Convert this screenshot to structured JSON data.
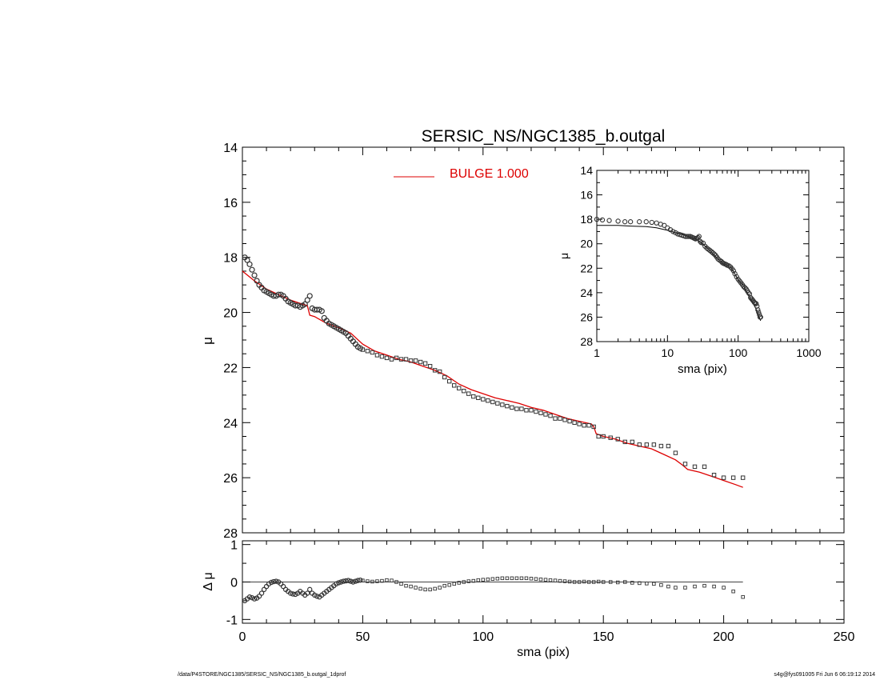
{
  "title": "SERSIC_NS/NGC1385_b.outgal",
  "footer": {
    "left": "/data/P4STORE/NGC1385/SERSIC_NS/NGC1385_b.outgal_1dprof",
    "right": "s4g@fys091005  Fri Jun  6 06:19:12 2014"
  },
  "colors": {
    "model": "#dd0000",
    "data": "#333333",
    "axis": "#000000"
  },
  "chart_data": [
    {
      "id": "main",
      "type": "scatter",
      "xlabel": "",
      "ylabel": "μ",
      "xlim": [
        0,
        250
      ],
      "ylim": [
        28,
        14
      ],
      "yticks": [
        14,
        16,
        18,
        20,
        22,
        24,
        26,
        28
      ],
      "legend": {
        "position": "top-center",
        "label": "BULGE  1.000"
      },
      "series": [
        {
          "kind": "data-points",
          "x": [
            1,
            2,
            3,
            4,
            5,
            6,
            7,
            8,
            9,
            10,
            11,
            12,
            13,
            14,
            15,
            16,
            17,
            18,
            19,
            20,
            21,
            22,
            23,
            24,
            25,
            26,
            27,
            28,
            29,
            30,
            31,
            32,
            33,
            34,
            35,
            36,
            37,
            38,
            39,
            40,
            41,
            42,
            43,
            44,
            45,
            46,
            47,
            48,
            49,
            50,
            52,
            54,
            56,
            58,
            60,
            62,
            64,
            66,
            68,
            70,
            72,
            74,
            76,
            78,
            80,
            82,
            84,
            86,
            88,
            90,
            92,
            94,
            96,
            98,
            100,
            102,
            104,
            106,
            108,
            110,
            112,
            114,
            116,
            118,
            120,
            122,
            124,
            126,
            128,
            130,
            132,
            134,
            136,
            138,
            140,
            142,
            144,
            146,
            148,
            150,
            153,
            156,
            159,
            162,
            165,
            168,
            171,
            174,
            177,
            180,
            184,
            188,
            192,
            196,
            200,
            204,
            208
          ],
          "y": [
            18.0,
            18.1,
            18.25,
            18.45,
            18.65,
            18.85,
            19.0,
            19.1,
            19.2,
            19.25,
            19.3,
            19.35,
            19.4,
            19.4,
            19.35,
            19.35,
            19.4,
            19.5,
            19.6,
            19.65,
            19.7,
            19.75,
            19.75,
            19.8,
            19.75,
            19.7,
            19.55,
            19.4,
            19.85,
            19.9,
            19.9,
            19.9,
            19.95,
            20.2,
            20.3,
            20.4,
            20.45,
            20.5,
            20.55,
            20.6,
            20.65,
            20.7,
            20.75,
            20.85,
            20.95,
            21.05,
            21.15,
            21.25,
            21.3,
            21.35,
            21.4,
            21.45,
            21.55,
            21.6,
            21.65,
            21.7,
            21.65,
            21.7,
            21.7,
            21.75,
            21.75,
            21.8,
            21.85,
            21.95,
            22.1,
            22.15,
            22.35,
            22.5,
            22.65,
            22.75,
            22.85,
            22.95,
            23.05,
            23.1,
            23.15,
            23.2,
            23.25,
            23.3,
            23.35,
            23.4,
            23.45,
            23.5,
            23.5,
            23.55,
            23.55,
            23.6,
            23.65,
            23.7,
            23.75,
            23.85,
            23.85,
            23.9,
            23.95,
            24.0,
            24.05,
            24.1,
            24.1,
            24.15,
            24.5,
            24.5,
            24.55,
            24.6,
            24.7,
            24.7,
            24.8,
            24.8,
            24.8,
            24.85,
            24.85,
            25.1,
            25.5,
            25.6,
            25.6,
            25.9,
            26.0,
            26.0,
            26.0
          ]
        },
        {
          "kind": "model",
          "name": "BULGE  1.000",
          "x": [
            0,
            5,
            10,
            15,
            20,
            25,
            27,
            28,
            30,
            35,
            40,
            45,
            50,
            55,
            60,
            65,
            70,
            75,
            80,
            85,
            90,
            95,
            100,
            105,
            110,
            115,
            120,
            125,
            130,
            135,
            140,
            145,
            146,
            147,
            150,
            155,
            160,
            165,
            170,
            175,
            180,
            183,
            185,
            190,
            195,
            200,
            205,
            208
          ],
          "y": [
            18.5,
            18.85,
            19.15,
            19.35,
            19.55,
            19.7,
            19.75,
            20.1,
            20.15,
            20.4,
            20.55,
            20.75,
            21.15,
            21.4,
            21.55,
            21.7,
            21.8,
            21.95,
            22.1,
            22.3,
            22.6,
            22.8,
            22.95,
            23.1,
            23.2,
            23.3,
            23.45,
            23.55,
            23.7,
            23.85,
            23.95,
            24.05,
            24.15,
            24.4,
            24.5,
            24.6,
            24.75,
            24.85,
            24.95,
            25.15,
            25.35,
            25.55,
            25.7,
            25.8,
            25.95,
            26.1,
            26.25,
            26.35
          ]
        }
      ]
    },
    {
      "id": "residual",
      "type": "scatter",
      "xlabel": "sma (pix)",
      "ylabel": "Δ μ",
      "xlim": [
        0,
        250
      ],
      "ylim": [
        -1.1,
        1.1
      ],
      "xticks": [
        0,
        50,
        100,
        150,
        200,
        250
      ],
      "yticks": [
        -1,
        0,
        1
      ],
      "reference_line": 0,
      "series": [
        {
          "kind": "residuals",
          "x": [
            1,
            2,
            3,
            4,
            5,
            6,
            7,
            8,
            9,
            10,
            11,
            12,
            13,
            14,
            15,
            16,
            17,
            18,
            19,
            20,
            21,
            22,
            23,
            24,
            25,
            26,
            27,
            28,
            29,
            30,
            31,
            32,
            33,
            34,
            35,
            36,
            37,
            38,
            39,
            40,
            41,
            42,
            43,
            44,
            45,
            46,
            47,
            48,
            49,
            50,
            52,
            54,
            56,
            58,
            60,
            62,
            64,
            66,
            68,
            70,
            72,
            74,
            76,
            78,
            80,
            82,
            84,
            86,
            88,
            90,
            92,
            94,
            96,
            98,
            100,
            102,
            104,
            106,
            108,
            110,
            112,
            114,
            116,
            118,
            120,
            122,
            124,
            126,
            128,
            130,
            132,
            134,
            136,
            138,
            140,
            142,
            144,
            146,
            148,
            150,
            153,
            156,
            159,
            162,
            165,
            168,
            171,
            174,
            177,
            180,
            184,
            188,
            192,
            196,
            200,
            204,
            208
          ],
          "y": [
            -0.5,
            -0.45,
            -0.4,
            -0.42,
            -0.45,
            -0.43,
            -0.38,
            -0.3,
            -0.2,
            -0.12,
            -0.05,
            -0.01,
            0.01,
            0.02,
            0.0,
            -0.05,
            -0.12,
            -0.2,
            -0.25,
            -0.3,
            -0.32,
            -0.33,
            -0.3,
            -0.25,
            -0.3,
            -0.35,
            -0.3,
            -0.2,
            -0.3,
            -0.35,
            -0.38,
            -0.4,
            -0.35,
            -0.3,
            -0.25,
            -0.2,
            -0.15,
            -0.1,
            -0.05,
            -0.02,
            0.0,
            0.02,
            0.03,
            0.04,
            0.02,
            0.0,
            0.02,
            0.04,
            0.05,
            0.04,
            0.02,
            0.01,
            0.02,
            0.03,
            0.05,
            0.04,
            0.0,
            -0.05,
            -0.1,
            -0.12,
            -0.15,
            -0.18,
            -0.2,
            -0.2,
            -0.18,
            -0.15,
            -0.1,
            -0.08,
            -0.05,
            -0.02,
            0.0,
            0.02,
            0.03,
            0.05,
            0.06,
            0.07,
            0.08,
            0.09,
            0.1,
            0.1,
            0.1,
            0.1,
            0.1,
            0.1,
            0.09,
            0.08,
            0.07,
            0.06,
            0.05,
            0.04,
            0.03,
            0.02,
            0.01,
            0.0,
            0.0,
            0.01,
            0.0,
            0.0,
            0.01,
            0.0,
            0.0,
            -0.01,
            0.0,
            -0.02,
            -0.03,
            -0.04,
            -0.05,
            -0.08,
            -0.12,
            -0.15,
            -0.15,
            -0.12,
            -0.1,
            -0.12,
            -0.15,
            -0.25,
            -0.4
          ]
        }
      ]
    },
    {
      "id": "inset",
      "type": "scatter",
      "xlabel": "sma (pix)",
      "ylabel": "μ",
      "xscale": "log",
      "xlim": [
        1,
        1000
      ],
      "ylim": [
        28,
        14
      ],
      "xticks": [
        1,
        10,
        100,
        1000
      ],
      "yticks": [
        14,
        16,
        18,
        20,
        22,
        24,
        26,
        28
      ],
      "series": [
        {
          "kind": "data-points",
          "x": [
            1,
            1.2,
            1.5,
            2,
            2.5,
            3,
            4,
            5,
            6,
            7,
            8,
            9,
            10,
            11,
            12,
            13,
            14,
            15,
            16,
            17,
            18,
            19,
            20,
            21,
            22,
            23,
            24,
            25,
            26,
            27,
            28,
            29,
            30,
            32,
            34,
            36,
            38,
            40,
            42,
            44,
            46,
            48,
            50,
            52,
            55,
            58,
            60,
            62,
            65,
            68,
            70,
            74,
            78,
            82,
            86,
            90,
            95,
            100,
            105,
            110,
            115,
            120,
            125,
            130,
            135,
            140,
            145,
            150,
            155,
            160,
            165,
            170,
            175,
            180,
            185,
            190,
            195,
            200,
            204,
            208
          ],
          "y": [
            18.0,
            18.05,
            18.1,
            18.15,
            18.2,
            18.2,
            18.2,
            18.2,
            18.25,
            18.3,
            18.4,
            18.5,
            18.7,
            18.85,
            19.0,
            19.1,
            19.2,
            19.25,
            19.3,
            19.35,
            19.4,
            19.4,
            19.4,
            19.4,
            19.45,
            19.5,
            19.55,
            19.6,
            19.55,
            19.5,
            19.4,
            19.8,
            19.9,
            19.95,
            20.2,
            20.35,
            20.45,
            20.55,
            20.65,
            20.75,
            20.85,
            20.95,
            21.1,
            21.25,
            21.35,
            21.45,
            21.55,
            21.6,
            21.65,
            21.7,
            21.75,
            21.8,
            21.9,
            22.05,
            22.2,
            22.45,
            22.7,
            22.9,
            23.05,
            23.2,
            23.35,
            23.5,
            23.6,
            23.7,
            23.85,
            24.0,
            24.1,
            24.4,
            24.5,
            24.6,
            24.7,
            24.8,
            24.85,
            24.9,
            25.1,
            25.4,
            25.6,
            25.8,
            26.0,
            26.0
          ]
        },
        {
          "kind": "model",
          "x": [
            1,
            2,
            3,
            5,
            7,
            10,
            15,
            20,
            25,
            30,
            40,
            50,
            60,
            70,
            80,
            100,
            120,
            150,
            180,
            208
          ],
          "y": [
            18.5,
            18.5,
            18.55,
            18.6,
            18.7,
            18.9,
            19.2,
            19.4,
            19.6,
            19.9,
            20.55,
            21.15,
            21.55,
            21.75,
            21.95,
            22.95,
            23.45,
            24.5,
            25.35,
            26.3
          ]
        }
      ]
    }
  ]
}
